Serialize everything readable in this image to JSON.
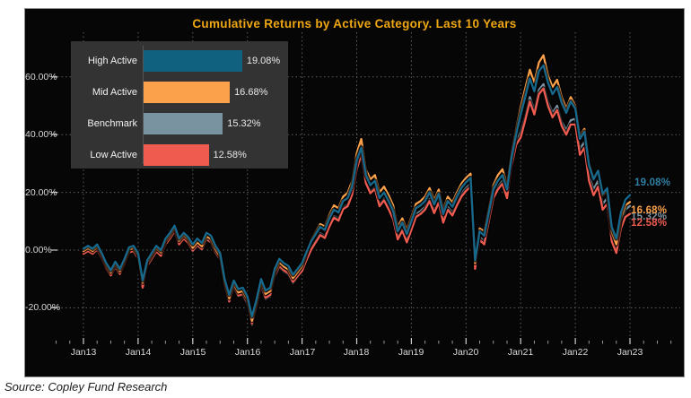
{
  "title": "Cumulative Returns by Active Category.  Last 10 Years",
  "source": "Source: Copley Fund Research",
  "colors": {
    "high": "#10607f",
    "high_line": "#16688c",
    "high_label": "#2f7fa3",
    "mid": "#fba14b",
    "benchmark": "#7a93a1",
    "low": "#f05b50",
    "title_text": "#efa713",
    "panel_bg": "#060606",
    "legend_bg": "#333333",
    "grid": "#5f5f5f",
    "axis_text": "#d8d8d8"
  },
  "legend": {
    "items": [
      {
        "label": "High Active",
        "value": 19.08,
        "value_label": "19.08%",
        "color_key": "high"
      },
      {
        "label": "Mid Active",
        "value": 16.68,
        "value_label": "16.68%",
        "color_key": "mid"
      },
      {
        "label": "Benchmark",
        "value": 15.32,
        "value_label": "15.32%",
        "color_key": "benchmark"
      },
      {
        "label": "Low Active",
        "value": 12.58,
        "value_label": "12.58%",
        "color_key": "low"
      }
    ]
  },
  "y_axis": {
    "ticks": [
      {
        "label": "60.00%",
        "value": 60
      },
      {
        "label": "40.00%",
        "value": 40
      },
      {
        "label": "20.00%",
        "value": 20
      },
      {
        "label": "0.00%",
        "value": 0
      },
      {
        "label": "-20.00%",
        "value": -20
      }
    ]
  },
  "x_axis": {
    "ticks": [
      {
        "label": "Jan13"
      },
      {
        "label": "Jan14"
      },
      {
        "label": "Jan15"
      },
      {
        "label": "Jan16"
      },
      {
        "label": "Jan17"
      },
      {
        "label": "Jan18"
      },
      {
        "label": "Jan19"
      },
      {
        "label": "Jan20"
      },
      {
        "label": "Jan21"
      },
      {
        "label": "Jan22"
      },
      {
        "label": "Jan23"
      }
    ],
    "minor_ticks_between": 3
  },
  "end_labels": [
    {
      "text": "19.08%",
      "color_key": "high_label"
    },
    {
      "text": "15.32%",
      "color_key": "benchmark"
    },
    {
      "text": "16.68%",
      "color_key": "mid"
    },
    {
      "text": "12.58%",
      "color_key": "low"
    }
  ],
  "chart_data": {
    "type": "line",
    "title": "Cumulative Returns by Active Category.  Last 10 Years",
    "x_unit": "month",
    "x_start": "Jan13",
    "x_end": "Jan23",
    "x_tick_labels": [
      "Jan13",
      "Jan14",
      "Jan15",
      "Jan16",
      "Jan17",
      "Jan18",
      "Jan19",
      "Jan20",
      "Jan21",
      "Jan22",
      "Jan23"
    ],
    "ylim": [
      -28,
      70
    ],
    "y_tick_values": [
      60,
      40,
      20,
      0,
      -20
    ],
    "grid": "dotted",
    "legend_position": "top-left-inset",
    "series": [
      {
        "name": "High Active",
        "end_value": 19.08,
        "color": "#16688c",
        "values": [
          0.5,
          1.5,
          0.5,
          2.0,
          -1.0,
          -4.5,
          -7.0,
          -4.0,
          -6.5,
          -3.0,
          1.0,
          1.5,
          -1.0,
          -10.5,
          -3.5,
          -1.0,
          1.5,
          0.0,
          4.0,
          6.0,
          8.5,
          4.0,
          6.0,
          4.5,
          2.0,
          4.0,
          2.5,
          6.0,
          5.0,
          1.5,
          -1.0,
          -10.0,
          -15.5,
          -10.5,
          -13.5,
          -13.0,
          -16.0,
          -23.0,
          -17.0,
          -10.0,
          -14.0,
          -13.0,
          -6.5,
          -3.0,
          -4.5,
          -5.5,
          -8.5,
          -6.5,
          -4.5,
          -0.5,
          3.0,
          5.5,
          8.0,
          7.0,
          11.0,
          14.0,
          13.0,
          17.0,
          18.0,
          22.0,
          31.0,
          35.5,
          26.0,
          22.5,
          24.0,
          18.0,
          20.0,
          17.0,
          13.5,
          6.5,
          9.5,
          5.5,
          10.0,
          14.5,
          15.5,
          17.0,
          20.0,
          15.8,
          19.5,
          12.5,
          17.0,
          15.0,
          18.5,
          21.5,
          23.5,
          25.0,
          -3.5,
          6.5,
          5.0,
          13.0,
          21.0,
          24.0,
          26.0,
          21.0,
          32.0,
          40.0,
          47.0,
          53.0,
          59.5,
          55.0,
          62.0,
          64.0,
          58.0,
          54.0,
          56.5,
          51.0,
          47.5,
          51.5,
          49.0,
          38.5,
          41.0,
          29.5,
          24.5,
          27.5,
          19.5,
          21.5,
          8.0,
          4.0,
          13.0,
          17.5,
          19.08
        ]
      },
      {
        "name": "Mid Active",
        "end_value": 16.68,
        "color": "#fba14b",
        "values": [
          -0.3,
          0.7,
          -0.3,
          1.2,
          -1.8,
          -5.3,
          -7.8,
          -4.8,
          -7.3,
          -3.8,
          0.2,
          0.7,
          -1.8,
          -11.3,
          -4.3,
          -1.8,
          0.7,
          -0.8,
          3.2,
          5.2,
          7.7,
          3.2,
          5.2,
          3.7,
          0.8,
          2.8,
          1.3,
          4.8,
          3.8,
          0.3,
          -2.2,
          -11.2,
          -16.7,
          -11.7,
          -14.7,
          -14.2,
          -17.2,
          -24.5,
          -18.2,
          -11.2,
          -15.2,
          -14.2,
          -7.7,
          -4.2,
          -5.7,
          -6.7,
          -9.7,
          -7.7,
          -5.5,
          -1.0,
          3.5,
          6.3,
          9.0,
          8.2,
          12.3,
          15.5,
          14.5,
          18.5,
          19.8,
          24.0,
          33.5,
          38.5,
          28.0,
          24.5,
          26.0,
          20.0,
          22.0,
          19.0,
          15.5,
          8.0,
          11.0,
          7.0,
          11.5,
          16.0,
          17.0,
          18.5,
          21.5,
          17.3,
          21.0,
          14.0,
          18.5,
          16.5,
          20.0,
          23.0,
          25.0,
          26.5,
          -4.5,
          7.5,
          6.5,
          14.5,
          22.5,
          26.0,
          28.0,
          22.5,
          33.5,
          42.0,
          49.5,
          56.0,
          62.5,
          58.0,
          65.0,
          67.5,
          60.5,
          56.5,
          59.0,
          53.0,
          49.0,
          53.0,
          50.0,
          39.5,
          42.0,
          30.0,
          25.0,
          27.5,
          19.0,
          20.5,
          6.5,
          2.0,
          11.0,
          15.5,
          16.68
        ]
      },
      {
        "name": "Benchmark",
        "end_value": 15.32,
        "color": "#7a93a1",
        "values": [
          -1.0,
          0.0,
          -1.0,
          0.5,
          -2.5,
          -6.0,
          -8.5,
          -5.5,
          -8.0,
          -4.5,
          -0.5,
          0.0,
          -2.8,
          -12.5,
          -5.3,
          -2.8,
          -0.3,
          -1.8,
          2.2,
          4.2,
          6.7,
          2.2,
          4.2,
          2.7,
          -0.5,
          1.5,
          0.0,
          3.5,
          2.5,
          -1.0,
          -3.5,
          -12.5,
          -18.0,
          -13.0,
          -16.0,
          -15.5,
          -19.0,
          -26.0,
          -20.0,
          -13.0,
          -17.0,
          -16.0,
          -9.5,
          -6.0,
          -7.5,
          -8.5,
          -11.5,
          -9.5,
          -6.7,
          -2.7,
          0.8,
          3.3,
          5.8,
          4.8,
          8.8,
          11.8,
          10.8,
          14.8,
          15.8,
          19.8,
          28.5,
          33.5,
          23.8,
          20.3,
          21.8,
          15.8,
          17.8,
          14.8,
          11.3,
          4.3,
          7.3,
          3.3,
          8.0,
          12.5,
          13.5,
          15.0,
          18.0,
          13.8,
          17.5,
          10.5,
          15.0,
          13.0,
          16.5,
          19.5,
          21.5,
          23.0,
          -5.5,
          4.5,
          3.0,
          11.0,
          19.0,
          22.0,
          24.0,
          19.0,
          30.0,
          37.5,
          41.0,
          46.5,
          53.0,
          48.5,
          55.5,
          57.5,
          51.5,
          47.5,
          50.0,
          44.5,
          41.5,
          45.0,
          45.5,
          35.0,
          37.5,
          26.0,
          21.0,
          24.0,
          16.0,
          18.0,
          5.0,
          1.0,
          9.5,
          14.0,
          15.32
        ]
      },
      {
        "name": "Low Active",
        "end_value": 12.58,
        "color": "#f05b50",
        "values": [
          -1.3,
          -0.3,
          -1.3,
          0.2,
          -2.8,
          -6.3,
          -8.8,
          -5.8,
          -8.3,
          -4.8,
          -0.8,
          -0.3,
          -3.0,
          -13.0,
          -5.5,
          -3.0,
          -0.5,
          -2.0,
          2.0,
          4.0,
          6.5,
          2.0,
          4.0,
          2.5,
          -0.2,
          1.8,
          0.3,
          3.8,
          2.8,
          -0.7,
          -3.2,
          -12.2,
          -17.8,
          -12.7,
          -15.7,
          -15.2,
          -18.5,
          -25.5,
          -19.5,
          -12.5,
          -16.5,
          -15.5,
          -9.0,
          -5.5,
          -7.0,
          -8.0,
          -11.0,
          -9.0,
          -7.3,
          -3.3,
          0.2,
          2.7,
          5.2,
          4.2,
          8.2,
          11.2,
          10.2,
          14.2,
          15.2,
          19.2,
          28.0,
          33.0,
          23.2,
          19.7,
          21.2,
          15.2,
          17.2,
          14.2,
          10.7,
          3.7,
          6.7,
          2.7,
          7.0,
          11.5,
          12.5,
          14.0,
          17.0,
          12.8,
          16.5,
          9.5,
          14.0,
          12.0,
          15.5,
          18.5,
          20.5,
          22.0,
          -6.5,
          3.5,
          2.0,
          10.0,
          18.0,
          21.0,
          23.0,
          18.0,
          29.0,
          36.5,
          39.0,
          45.0,
          51.5,
          47.0,
          54.0,
          56.0,
          50.0,
          46.0,
          48.5,
          43.0,
          40.0,
          43.5,
          43.5,
          33.0,
          35.5,
          24.0,
          19.0,
          22.0,
          14.0,
          16.0,
          3.0,
          -1.0,
          7.5,
          11.5,
          12.58
        ]
      }
    ]
  }
}
